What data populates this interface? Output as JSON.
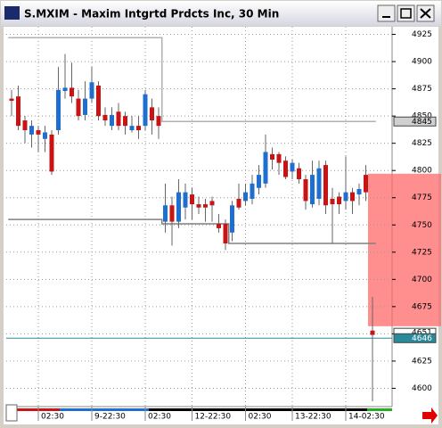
{
  "chart_data": {
    "type": "candlestick",
    "title": "S.MXIM - Maxim Intgrtd Prdcts Inc, 30 Min",
    "categories": [
      null,
      null,
      null,
      null,
      "02:30",
      null,
      null,
      null,
      null,
      null,
      null,
      null,
      "9-22:30",
      null,
      null,
      null,
      null,
      null,
      null,
      null,
      "02:30",
      null,
      null,
      null,
      null,
      null,
      null,
      "12-22:30",
      null,
      null,
      null,
      null,
      null,
      null,
      null,
      "02:30",
      null,
      null,
      null,
      null,
      null,
      null,
      "13-22:30",
      null,
      null,
      null,
      null,
      null,
      null,
      null,
      "14-02:30",
      null,
      null,
      null,
      null
    ],
    "open": [
      4866,
      4868,
      4846,
      4833,
      4837,
      4829,
      4833,
      4837,
      4873,
      4876,
      4866,
      4851,
      4866,
      4878,
      4851,
      4841,
      4854,
      4850,
      4837,
      4841,
      4841,
      4858,
      4850,
      4753,
      4768,
      4753,
      4766,
      4778,
      4769,
      4769,
      4772,
      4751,
      4751,
      4743,
      4774,
      4772,
      4774,
      4784,
      4788,
      4815,
      4815,
      4809,
      4799,
      4802,
      4792,
      4769,
      4774,
      4805,
      4774,
      4776,
      4772,
      4780,
      4778,
      4796,
      4653
    ],
    "high": [
      4874,
      4878,
      4850,
      4846,
      4841,
      4841,
      4837,
      4895,
      4907,
      4899,
      4874,
      4882,
      4895,
      4882,
      4858,
      4858,
      4862,
      4854,
      4850,
      4850,
      4874,
      4866,
      4858,
      4788,
      4776,
      4792,
      4788,
      4784,
      4776,
      4774,
      4776,
      4760,
      4755,
      4772,
      4788,
      4788,
      4796,
      4805,
      4833,
      4821,
      4817,
      4813,
      4810,
      4807,
      4796,
      4809,
      4809,
      4809,
      4784,
      4780,
      4813,
      4784,
      4788,
      4805,
      4684
    ],
    "low": [
      4850,
      4837,
      4825,
      4821,
      4817,
      4817,
      4796,
      4833,
      4866,
      4862,
      4846,
      4846,
      4862,
      4846,
      4841,
      4837,
      4837,
      4833,
      4835,
      4829,
      4837,
      4833,
      4829,
      4743,
      4731,
      4747,
      4755,
      4755,
      4760,
      4753,
      4753,
      4743,
      4727,
      4735,
      4764,
      4768,
      4769,
      4778,
      4784,
      4801,
      4796,
      4792,
      4792,
      4788,
      4764,
      4766,
      4768,
      4760,
      4733,
      4760,
      4764,
      4760,
      4768,
      4772,
      4588
    ],
    "close": [
      4864,
      4841,
      4837,
      4841,
      4833,
      4835,
      4799,
      4874,
      4876,
      4868,
      4850,
      4866,
      4881,
      4850,
      4846,
      4851,
      4841,
      4841,
      4841,
      4837,
      4870,
      4846,
      4841,
      4768,
      4753,
      4780,
      4780,
      4769,
      4766,
      4766,
      4768,
      4747,
      4733,
      4768,
      4766,
      4780,
      4788,
      4796,
      4817,
      4810,
      4807,
      4794,
      4807,
      4792,
      4772,
      4796,
      4802,
      4768,
      4769,
      4769,
      4780,
      4772,
      4783,
      4780,
      4649
    ],
    "up_color": "#1f6fd0",
    "down_color": "#c81414",
    "upper_line": {
      "color": "#b0b0b0",
      "values": [
        4922,
        4922,
        4922,
        4922,
        4922,
        4922,
        4922,
        4922,
        4922,
        4922,
        4922,
        4922,
        4922,
        4922,
        4922,
        4922,
        4922,
        4922,
        4922,
        4922,
        4922,
        4922,
        4922,
        4845,
        4845,
        4845,
        4845,
        4845,
        4845,
        4845,
        4845,
        4845,
        4845,
        4845,
        4845,
        4845,
        4845,
        4845,
        4845,
        4845,
        4845,
        4845,
        4845,
        4845,
        4845,
        4845,
        4845,
        4845,
        4845,
        4845,
        4845,
        4845,
        4845,
        4845,
        4845
      ]
    },
    "lower_line": {
      "color": "#808080",
      "values": [
        4755,
        4755,
        4755,
        4755,
        4755,
        4755,
        4755,
        4755,
        4755,
        4755,
        4755,
        4755,
        4755,
        4755,
        4755,
        4755,
        4755,
        4755,
        4755,
        4755,
        4755,
        4755,
        4755,
        4751,
        4751,
        4751,
        4751,
        4751,
        4751,
        4751,
        4751,
        4751,
        4751,
        4733,
        4733,
        4733,
        4733,
        4733,
        4733,
        4733,
        4733,
        4733,
        4733,
        4733,
        4733,
        4733,
        4733,
        4733,
        4733,
        4733,
        4733,
        4733,
        4733,
        4733,
        4733
      ]
    },
    "zone": {
      "from": 4797,
      "to": 4657,
      "color": "#ff6a6a"
    },
    "price_line": {
      "value": 4646,
      "label": "4646",
      "color": "#2a8a9a"
    },
    "prev_price": {
      "value": 4651,
      "label": "4651"
    },
    "level_label": {
      "value": 4845,
      "label": "4845"
    },
    "ylim": [
      4584,
      4932
    ],
    "yticks": [
      4925,
      4900,
      4875,
      4850,
      4825,
      4800,
      4775,
      4750,
      4725,
      4700,
      4675,
      4650,
      4625,
      4600
    ],
    "grid": true
  }
}
